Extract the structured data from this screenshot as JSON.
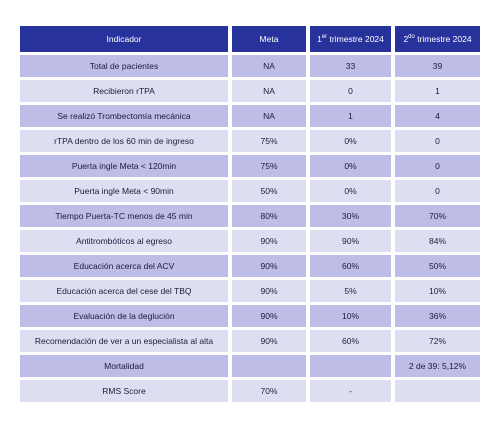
{
  "table": {
    "header": [
      "Indicador",
      "Meta",
      {
        "lead": "1",
        "sup": "er",
        "tail": " trimestre 2024"
      },
      {
        "lead": "2",
        "sup": "do",
        "tail": " trimestre 2024"
      }
    ],
    "rows": [
      [
        "Total de pacientes",
        "NA",
        "33",
        "39"
      ],
      [
        "Recibieron rTPA",
        "NA",
        "0",
        "1"
      ],
      [
        "Se realizó Trombectomía mecánica",
        "NA",
        "1",
        "4"
      ],
      [
        "rTPA dentro de los 60 min de ingreso",
        "75%",
        "0%",
        "0"
      ],
      [
        "Puerta ingle Meta < 120min",
        "75%",
        "0%",
        "0"
      ],
      [
        "Puerta ingle Meta < 90min",
        "50%",
        "0%",
        "0"
      ],
      [
        "Tiempo Puerta-TC menos de 45 min",
        "80%",
        "30%",
        "70%"
      ],
      [
        "Antitrombóticos al egreso",
        "90%",
        "90%",
        "84%"
      ],
      [
        "Educación acerca del ACV",
        "90%",
        "60%",
        "50%"
      ],
      [
        "Educación acerca del cese del TBQ",
        "90%",
        "5%",
        "10%"
      ],
      [
        "Evaluación de la deglución",
        "90%",
        "10%",
        "36%"
      ],
      [
        "Recomendación de ver a un especialista al alta",
        "90%",
        "60%",
        "72%"
      ],
      [
        "Mortalidad",
        null,
        null,
        "2 de 39: 5,12%"
      ],
      [
        "RMS Score",
        "70%",
        "-",
        null
      ]
    ]
  }
}
